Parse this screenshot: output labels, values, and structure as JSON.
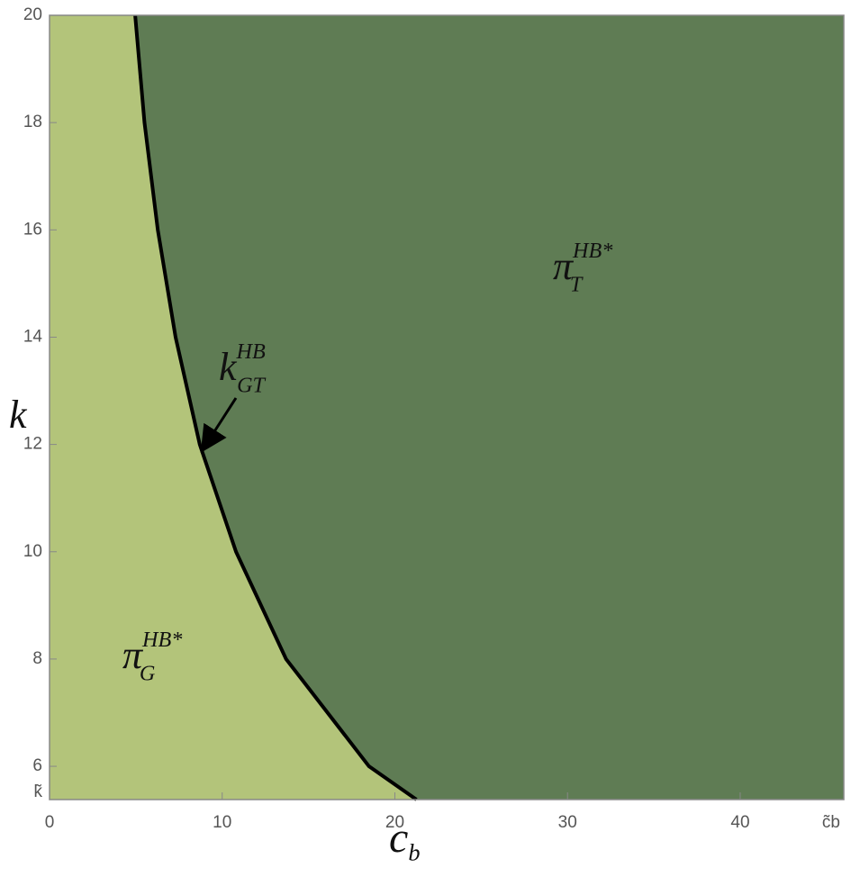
{
  "chart_data": {
    "type": "region",
    "x_label": {
      "text": "c",
      "sub": "b"
    },
    "y_label": {
      "text": "k"
    },
    "xlim": [
      0,
      46
    ],
    "ylim": [
      5.38,
      20
    ],
    "xticks": [
      0,
      10,
      20,
      30,
      40,
      {
        "value": 46,
        "label": "c̃b"
      }
    ],
    "yticks": [
      {
        "value": 5.38,
        "label": "k̃"
      },
      6,
      8,
      10,
      12,
      14,
      16,
      18,
      20
    ],
    "boundary": {
      "x": [
        4.96,
        5.5,
        6.27,
        7.3,
        8.7,
        10.8,
        13.7,
        18.5,
        21.25
      ],
      "y": [
        20,
        18,
        16,
        14,
        12,
        10,
        8,
        6,
        5.38
      ],
      "color": "#000000"
    },
    "regions": [
      {
        "color": "#b3c47a"
      },
      {
        "color": "#5f7c54"
      }
    ],
    "annotations": [
      {
        "text": "π",
        "sub": "G",
        "sup": "HB*"
      },
      {
        "text": "π",
        "sub": "T",
        "sup": "HB*"
      },
      {
        "text": "k",
        "sub": "GT",
        "sup": "HB"
      }
    ]
  }
}
